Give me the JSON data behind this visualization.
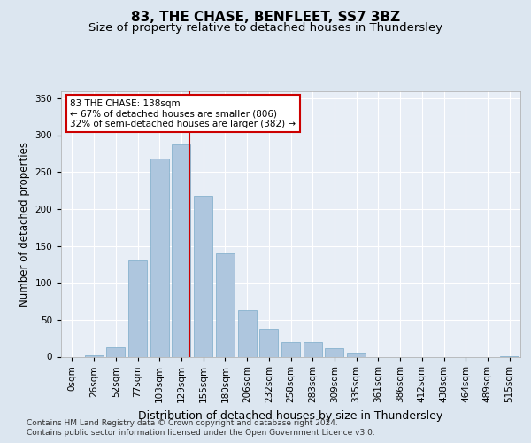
{
  "title": "83, THE CHASE, BENFLEET, SS7 3BZ",
  "subtitle": "Size of property relative to detached houses in Thundersley",
  "xlabel": "Distribution of detached houses by size in Thundersley",
  "ylabel": "Number of detached properties",
  "categories": [
    "0sqm",
    "26sqm",
    "52sqm",
    "77sqm",
    "103sqm",
    "129sqm",
    "155sqm",
    "180sqm",
    "206sqm",
    "232sqm",
    "258sqm",
    "283sqm",
    "309sqm",
    "335sqm",
    "361sqm",
    "386sqm",
    "412sqm",
    "438sqm",
    "464sqm",
    "489sqm",
    "515sqm"
  ],
  "values": [
    0,
    2,
    13,
    130,
    268,
    287,
    218,
    140,
    63,
    38,
    20,
    20,
    11,
    5,
    0,
    0,
    0,
    0,
    0,
    0,
    1
  ],
  "bar_color": "#aec6de",
  "bar_edgecolor": "#7aaac8",
  "bar_width": 0.85,
  "vline_x": 5.35,
  "vline_color": "#cc0000",
  "annotation_text": "83 THE CHASE: 138sqm\n← 67% of detached houses are smaller (806)\n32% of semi-detached houses are larger (382) →",
  "annotation_box_color": "#ffffff",
  "annotation_box_edgecolor": "#cc0000",
  "ylim": [
    0,
    360
  ],
  "yticks": [
    0,
    50,
    100,
    150,
    200,
    250,
    300,
    350
  ],
  "bg_color": "#dce6f0",
  "plot_bg_color": "#e8eef6",
  "grid_color": "#ffffff",
  "title_fontsize": 11,
  "subtitle_fontsize": 9.5,
  "xlabel_fontsize": 9,
  "ylabel_fontsize": 8.5,
  "tick_fontsize": 7.5,
  "footer_line1": "Contains HM Land Registry data © Crown copyright and database right 2024.",
  "footer_line2": "Contains public sector information licensed under the Open Government Licence v3.0."
}
